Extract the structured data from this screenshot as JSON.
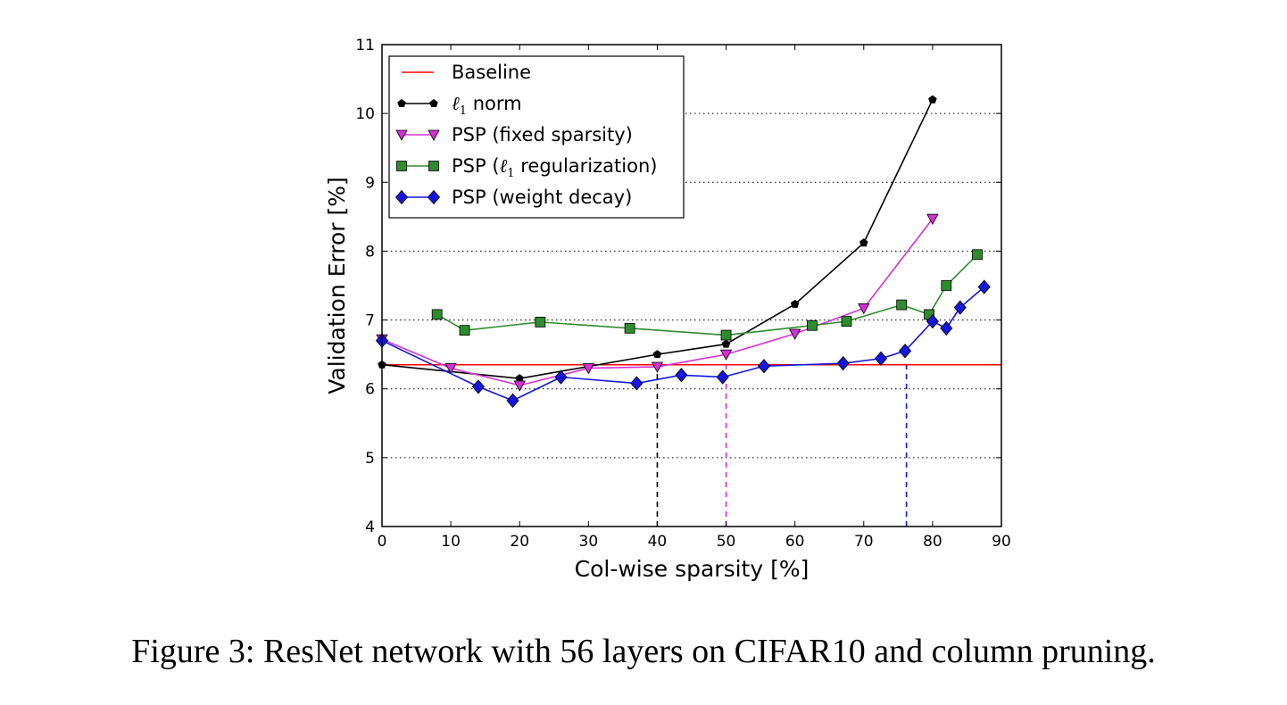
{
  "caption": "Figure 3: ResNet network with 56 layers on CIFAR10 and column pruning.",
  "chart_data": {
    "type": "line",
    "xlabel": "Col-wise sparsity [%]",
    "ylabel": "Validation Error [%]",
    "xlim": [
      0,
      90
    ],
    "ylim": [
      4,
      11
    ],
    "xticks": [
      0,
      10,
      20,
      30,
      40,
      50,
      60,
      70,
      80,
      90
    ],
    "yticks": [
      4,
      5,
      6,
      7,
      8,
      9,
      10,
      11
    ],
    "grid": "horizontal dotted",
    "legend_position": "top-left",
    "baseline": {
      "name": "Baseline",
      "value": 6.35,
      "color": "#ff0000"
    },
    "series": [
      {
        "name": "ℓ1 norm",
        "legend_prefix": "ℓ",
        "legend_sub": "1",
        "legend_suffix": " norm",
        "color": "#000000",
        "marker": "pentagon",
        "x": [
          0,
          20,
          40,
          50,
          60,
          70,
          80
        ],
        "y": [
          6.35,
          6.15,
          6.5,
          6.65,
          7.23,
          8.12,
          10.2
        ]
      },
      {
        "name": "PSP (fixed sparsity)",
        "legend_prefix": "PSP (fixed sparsity)",
        "legend_sub": "",
        "legend_suffix": "",
        "color": "#d62fd6",
        "marker": "triangle-down",
        "x": [
          0,
          10,
          20,
          30,
          40,
          50,
          60,
          70,
          80
        ],
        "y": [
          6.72,
          6.3,
          6.05,
          6.3,
          6.32,
          6.5,
          6.8,
          7.17,
          8.47
        ]
      },
      {
        "name": "PSP (ℓ1 regularization)",
        "legend_prefix": "PSP (ℓ",
        "legend_sub": "1",
        "legend_suffix": " regularization)",
        "color": "#2e8b2e",
        "marker": "square",
        "x": [
          8,
          12,
          23,
          36,
          50,
          62.5,
          67.5,
          75.5,
          79.5,
          82,
          86.5
        ],
        "y": [
          7.08,
          6.85,
          6.97,
          6.88,
          6.78,
          6.92,
          6.98,
          7.22,
          7.08,
          7.5,
          7.95
        ]
      },
      {
        "name": "PSP (weight decay)",
        "legend_prefix": "PSP (weight decay)",
        "legend_sub": "",
        "legend_suffix": "",
        "color": "#1515e0",
        "marker": "diamond",
        "x": [
          0,
          14,
          19,
          26,
          37,
          43.5,
          49.5,
          55.5,
          67,
          72.5,
          76,
          80,
          82,
          84,
          87.5
        ],
        "y": [
          6.7,
          6.03,
          5.83,
          6.17,
          6.08,
          6.2,
          6.17,
          6.33,
          6.37,
          6.44,
          6.55,
          6.98,
          6.88,
          7.18,
          7.48
        ]
      }
    ],
    "vertical_markers": [
      {
        "x": 40,
        "color": "#000000"
      },
      {
        "x": 50,
        "color": "#d62fd6"
      },
      {
        "x": 76.2,
        "color": "#1515e0"
      }
    ]
  }
}
